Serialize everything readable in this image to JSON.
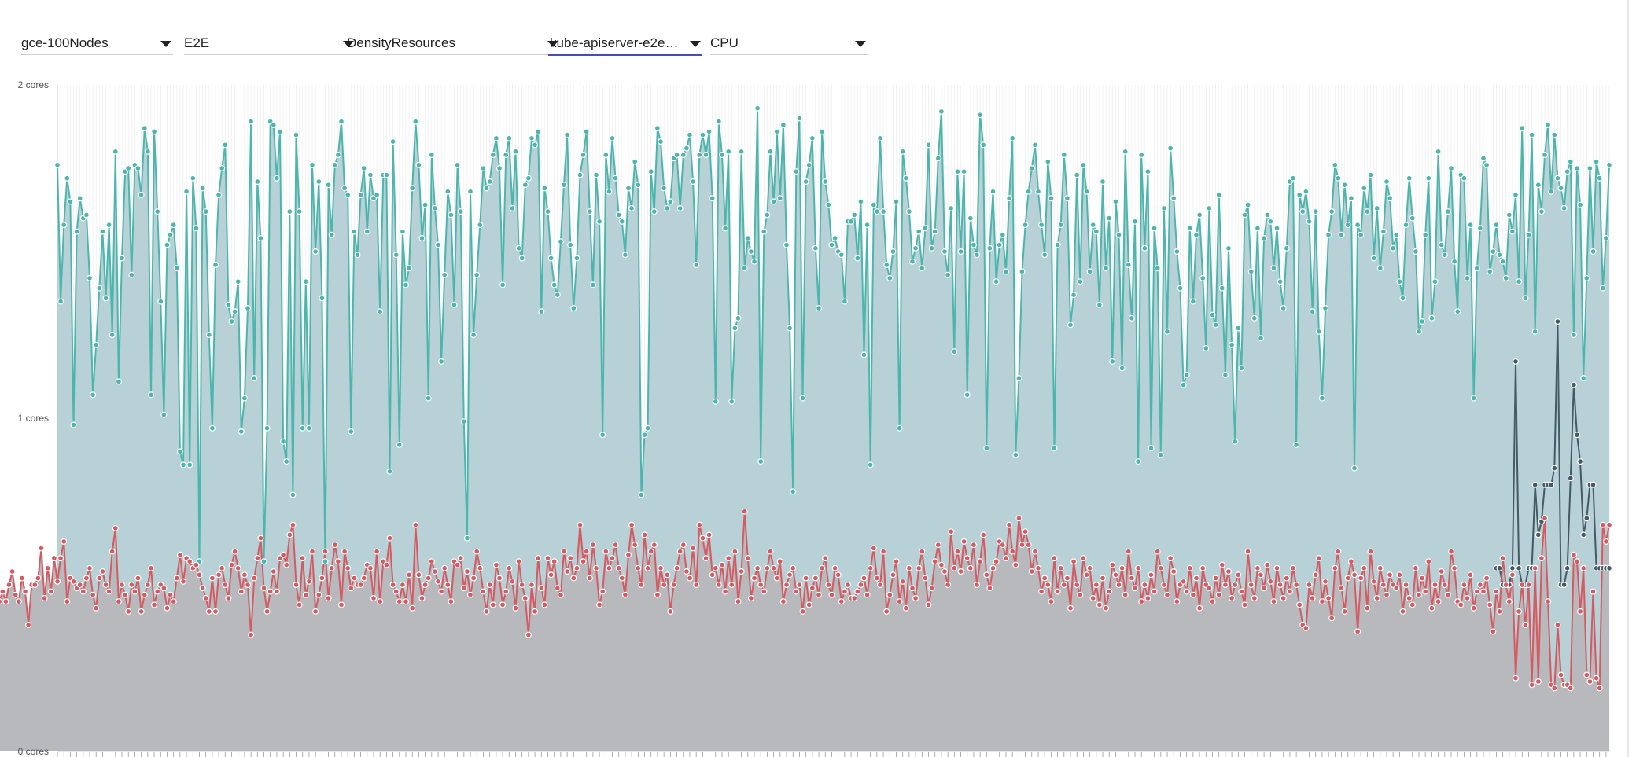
{
  "filters": [
    {
      "value": "gce-100Nodes"
    },
    {
      "value": "E2E"
    },
    {
      "value": "DensityResources"
    },
    {
      "value": "kube-apiserver-e2e-b..."
    },
    {
      "value": "CPU"
    }
  ],
  "colors": {
    "accent": "#3f51b5",
    "series_top": "#4db6ac",
    "series_top_fill": "#b4cfd4",
    "series_mid": "#455a64",
    "series_low": "#d45b62",
    "series_low_fill": "#b7b9bd"
  },
  "chart_data": {
    "type": "area",
    "ylabel": "",
    "xlabel": "",
    "ylim": [
      0,
      2
    ],
    "yticks": [
      {
        "value": 2,
        "label": "2 cores"
      },
      {
        "value": 1,
        "label": "1 cores"
      },
      {
        "value": 0,
        "label": "0 cores"
      }
    ],
    "grid": true,
    "series": [
      {
        "color": "#4db6ac",
        "values": [
          1.76,
          1.35,
          1.58,
          1.72,
          1.65,
          0.98,
          1.56,
          1.66,
          1.6,
          1.61,
          1.42,
          1.07,
          1.22,
          1.39,
          1.56,
          1.36,
          1.58,
          1.25,
          1.8,
          1.11,
          1.48,
          1.74,
          1.75,
          1.43,
          1.76,
          1.75,
          1.67,
          1.87,
          1.8,
          1.07,
          1.86,
          1.62,
          1.35,
          1.01,
          1.52,
          1.55,
          1.58,
          1.45,
          0.9,
          0.86,
          1.68,
          0.86,
          1.72,
          1.57,
          0.57,
          1.69,
          1.62,
          1.25,
          0.97,
          1.46,
          1.67,
          1.75,
          1.82,
          1.34,
          1.29,
          1.32,
          1.41,
          0.96,
          1.06,
          1.33,
          1.89,
          1.12,
          1.71,
          1.54,
          0.57,
          0.97,
          1.89,
          1.88,
          1.72,
          1.86,
          0.93,
          0.87,
          1.62,
          0.77,
          1.85,
          1.62,
          0.97,
          1.41,
          0.97,
          1.76,
          1.5,
          1.71,
          1.36,
          0.57,
          1.7,
          1.55,
          1.76,
          1.79,
          1.89,
          1.69,
          1.67,
          0.96,
          1.56,
          1.49,
          1.67,
          1.75,
          1.56,
          1.73,
          1.66,
          1.67,
          1.32,
          1.73,
          1.73,
          0.84,
          1.83,
          1.49,
          0.92,
          1.56,
          1.4,
          1.45,
          1.69,
          1.89,
          1.76,
          1.54,
          1.64,
          1.06,
          1.79,
          1.63,
          1.52,
          1.17,
          1.43,
          1.68,
          1.61,
          1.34,
          1.76,
          1.62,
          0.99,
          0.64,
          1.68,
          1.25,
          1.43,
          1.58,
          1.75,
          1.69,
          1.71,
          1.79,
          1.84,
          1.75,
          1.4,
          1.79,
          1.84,
          1.63,
          1.8,
          1.51,
          1.48,
          1.7,
          1.72,
          1.84,
          1.82,
          1.86,
          1.32,
          1.69,
          1.62,
          1.48,
          1.4,
          1.37,
          1.53,
          1.7,
          1.85,
          1.52,
          1.33,
          1.48,
          1.73,
          1.79,
          1.86,
          1.62,
          1.4,
          1.73,
          1.59,
          0.95,
          1.79,
          1.68,
          1.84,
          1.72,
          1.61,
          1.59,
          1.49,
          1.69,
          1.63,
          1.77,
          1.7,
          0.77,
          0.95,
          0.97,
          1.74,
          1.62,
          1.87,
          1.83,
          1.69,
          1.63,
          1.65,
          1.78,
          1.79,
          1.63,
          1.79,
          1.81,
          1.85,
          1.71,
          1.46,
          1.79,
          1.85,
          1.79,
          1.86,
          1.66,
          1.05,
          1.89,
          1.79,
          1.57,
          1.8,
          1.05,
          1.27,
          1.3,
          1.8,
          1.45,
          1.54,
          1.5,
          1.47,
          1.93,
          0.87,
          1.56,
          1.61,
          1.8,
          1.65,
          1.86,
          1.66,
          1.88,
          1.52,
          1.27,
          0.78,
          1.74,
          1.9,
          1.06,
          1.71,
          1.76,
          1.84,
          1.51,
          1.33,
          1.86,
          1.71,
          1.64,
          1.52,
          1.54,
          1.5,
          1.49,
          1.35,
          1.59,
          1.59,
          1.61,
          1.48,
          1.65,
          1.19,
          1.58,
          0.86,
          1.64,
          1.62,
          1.84,
          1.62,
          1.46,
          1.42,
          1.5,
          1.65,
          0.97,
          1.8,
          1.72,
          1.62,
          1.47,
          1.51,
          1.56,
          1.45,
          1.57,
          1.82,
          1.51,
          1.56,
          1.78,
          1.92,
          1.5,
          1.43,
          1.63,
          1.2,
          1.74,
          1.5,
          1.74,
          1.07,
          1.6,
          1.52,
          1.49,
          1.91,
          1.82,
          0.91,
          1.51,
          1.68,
          1.41,
          1.52,
          1.55,
          1.44,
          1.66,
          1.84,
          0.89,
          1.12,
          1.44,
          1.58,
          1.68,
          1.75,
          1.82,
          1.68,
          1.58,
          1.49,
          1.77,
          1.66,
          0.91,
          1.52,
          1.58,
          1.79,
          1.66,
          1.28,
          1.37,
          1.73,
          1.41,
          1.76,
          1.68,
          1.44,
          1.58,
          1.56,
          1.34,
          1.71,
          1.45,
          1.6,
          1.17,
          1.65,
          1.55,
          1.15,
          1.8,
          1.46,
          1.3,
          1.59,
          0.87,
          1.79,
          1.51,
          1.74,
          0.91,
          1.57,
          1.45,
          0.89,
          1.63,
          1.26,
          1.81,
          1.66,
          1.5,
          1.39,
          1.1,
          1.13,
          1.57,
          1.35,
          1.55,
          1.61,
          1.42,
          1.21,
          1.63,
          1.31,
          1.28,
          1.67,
          1.39,
          1.13,
          1.51,
          1.22,
          0.93,
          1.27,
          1.15,
          1.61,
          1.64,
          1.44,
          1.3,
          1.57,
          1.24,
          1.54,
          1.61,
          1.59,
          1.45,
          1.57,
          1.41,
          1.33,
          1.51,
          1.71,
          1.72,
          0.92,
          1.67,
          1.62,
          1.68,
          1.59,
          1.32,
          1.62,
          1.26,
          1.06,
          1.33,
          1.55,
          1.62,
          1.76,
          1.72,
          1.55,
          1.7,
          1.58,
          1.66,
          0.85,
          1.58,
          1.55,
          1.69,
          1.62,
          1.73,
          1.48,
          1.63,
          1.45,
          1.56,
          1.71,
          1.66,
          1.51,
          1.55,
          1.41,
          1.36,
          1.58,
          1.72,
          1.6,
          1.5,
          1.26,
          1.29,
          1.55,
          1.72,
          1.3,
          1.41,
          1.8,
          1.52,
          1.49,
          1.62,
          1.75,
          1.47,
          1.32,
          1.73,
          1.72,
          1.42,
          1.58,
          1.06,
          1.45,
          1.57,
          1.78,
          1.76,
          1.44,
          1.5,
          1.58,
          1.49,
          1.47,
          1.42,
          1.61,
          1.56,
          1.67,
          1.41,
          1.87,
          1.36,
          1.55,
          1.85,
          1.26,
          1.7,
          1.62,
          1.79,
          1.88,
          1.68,
          1.85,
          1.72,
          1.69,
          1.63,
          1.74,
          1.77,
          1.25,
          1.75,
          1.64,
          1.12,
          1.42,
          1.75,
          1.5,
          1.77,
          1.72,
          1.39,
          1.54,
          1.76
        ]
      },
      {
        "color": "#455a64",
        "values": [
          0.55,
          0.55,
          0.5,
          0.5,
          0.5,
          0.55,
          1.17,
          0.55,
          0.5,
          0.5,
          0.55,
          0.55,
          0.8,
          0.65,
          0.69,
          0.8,
          0.8,
          0.8,
          0.85,
          1.29,
          0.5,
          0.5,
          0.55,
          0.82,
          1.1,
          0.95,
          0.87,
          0.65,
          0.7,
          0.8,
          0.8,
          0.55,
          0.55,
          0.55,
          0.55,
          0.55
        ]
      },
      {
        "color": "#d45b62",
        "values": [
          0.47,
          0.52,
          0.55,
          0.5,
          0.55,
          0.5,
          0.5,
          0.46,
          0.48,
          0.42,
          0.45,
          0.43,
          0.53,
          0.5,
          0.45,
          0.48,
          0.45,
          0.5,
          0.54,
          0.47,
          0.45,
          0.52,
          0.48,
          0.38,
          0.5,
          0.5,
          0.52,
          0.61,
          0.46,
          0.55,
          0.48,
          0.58,
          0.51,
          0.58,
          0.63,
          0.45,
          0.52,
          0.51,
          0.49,
          0.5,
          0.48,
          0.52,
          0.55,
          0.47,
          0.43,
          0.52,
          0.54,
          0.5,
          0.48,
          0.6,
          0.67,
          0.45,
          0.5,
          0.47,
          0.42,
          0.5,
          0.48,
          0.52,
          0.42,
          0.47,
          0.5,
          0.55,
          0.44,
          0.48,
          0.5,
          0.49,
          0.43,
          0.47,
          0.45,
          0.52,
          0.59,
          0.51,
          0.58,
          0.57,
          0.55,
          0.56,
          0.53,
          0.49,
          0.46,
          0.42,
          0.52,
          0.42,
          0.53,
          0.55,
          0.5,
          0.46,
          0.56,
          0.6,
          0.55,
          0.48,
          0.53,
          0.5,
          0.35,
          0.52,
          0.58,
          0.64,
          0.49,
          0.42,
          0.48,
          0.54,
          0.48,
          0.58,
          0.59,
          0.56,
          0.65,
          0.68,
          0.5,
          0.44,
          0.58,
          0.47,
          0.51,
          0.6,
          0.42,
          0.47,
          0.52,
          0.6,
          0.46,
          0.55,
          0.62,
          0.57,
          0.44,
          0.6,
          0.55,
          0.49,
          0.52,
          0.5,
          0.5,
          0.52,
          0.56,
          0.55,
          0.46,
          0.6,
          0.45,
          0.57,
          0.56,
          0.64,
          0.5,
          0.48,
          0.45,
          0.5,
          0.45,
          0.53,
          0.43,
          0.68,
          0.53,
          0.46,
          0.5,
          0.52,
          0.57,
          0.54,
          0.51,
          0.48,
          0.55,
          0.5,
          0.45,
          0.57,
          0.56,
          0.58,
          0.49,
          0.54,
          0.47,
          0.52,
          0.6,
          0.55,
          0.48,
          0.42,
          0.5,
          0.44,
          0.56,
          0.52,
          0.44,
          0.48,
          0.55,
          0.51,
          0.43,
          0.57,
          0.5,
          0.46,
          0.35,
          0.5,
          0.42,
          0.58,
          0.49,
          0.44,
          0.58,
          0.53,
          0.57,
          0.49,
          0.47,
          0.6,
          0.54,
          0.58,
          0.52,
          0.55,
          0.68,
          0.57,
          0.6,
          0.52,
          0.62,
          0.55,
          0.44,
          0.48,
          0.6,
          0.55,
          0.58,
          0.62,
          0.55,
          0.52,
          0.47,
          0.59,
          0.68,
          0.62,
          0.55,
          0.5,
          0.65,
          0.55,
          0.6,
          0.62,
          0.47,
          0.55,
          0.5,
          0.53,
          0.42,
          0.5,
          0.55,
          0.6,
          0.62,
          0.54,
          0.52,
          0.61,
          0.5,
          0.68,
          0.64,
          0.58,
          0.65,
          0.53,
          0.55,
          0.5,
          0.56,
          0.48,
          0.58,
          0.5,
          0.6,
          0.45,
          0.54,
          0.72,
          0.58,
          0.46,
          0.52,
          0.55,
          0.5,
          0.48,
          0.55,
          0.6,
          0.55,
          0.52,
          0.57,
          0.45,
          0.5,
          0.53,
          0.55,
          0.48,
          0.5,
          0.42,
          0.52,
          0.44,
          0.49,
          0.52,
          0.47,
          0.55,
          0.58,
          0.5,
          0.47,
          0.55,
          0.53,
          0.45,
          0.48,
          0.5,
          0.46,
          0.46,
          0.48,
          0.5,
          0.52,
          0.47,
          0.55,
          0.61,
          0.52,
          0.5,
          0.6,
          0.42,
          0.47,
          0.53,
          0.57,
          0.45,
          0.51,
          0.43,
          0.55,
          0.49,
          0.46,
          0.55,
          0.6,
          0.52,
          0.44,
          0.49,
          0.57,
          0.62,
          0.56,
          0.54,
          0.5,
          0.66,
          0.55,
          0.6,
          0.54,
          0.63,
          0.58,
          0.55,
          0.62,
          0.5,
          0.57,
          0.65,
          0.53,
          0.49,
          0.55,
          0.57,
          0.63,
          0.62,
          0.58,
          0.68,
          0.6,
          0.56,
          0.7,
          0.62,
          0.66,
          0.62,
          0.54,
          0.6,
          0.55,
          0.48,
          0.52,
          0.5,
          0.45,
          0.58,
          0.48,
          0.55,
          0.5,
          0.52,
          0.43,
          0.57,
          0.5,
          0.47,
          0.58,
          0.53,
          0.55,
          0.46,
          0.5,
          0.44,
          0.52,
          0.43,
          0.48,
          0.56,
          0.53,
          0.5,
          0.55,
          0.47,
          0.6,
          0.52,
          0.49,
          0.55,
          0.45,
          0.5,
          0.46,
          0.53,
          0.48,
          0.6,
          0.55,
          0.5,
          0.47,
          0.58,
          0.54,
          0.45,
          0.5,
          0.51,
          0.48,
          0.55,
          0.47,
          0.52,
          0.43,
          0.55,
          0.5,
          0.49,
          0.45,
          0.52,
          0.47,
          0.56,
          0.5,
          0.54,
          0.46,
          0.5,
          0.53,
          0.48,
          0.44,
          0.6,
          0.5,
          0.46,
          0.55,
          0.53,
          0.49,
          0.56,
          0.51,
          0.45,
          0.55,
          0.5,
          0.46,
          0.52,
          0.48,
          0.55,
          0.5,
          0.44,
          0.38,
          0.37,
          0.5,
          0.46,
          0.53,
          0.58,
          0.45,
          0.51,
          0.46,
          0.4,
          0.55,
          0.6,
          0.49,
          0.42,
          0.52,
          0.57,
          0.53,
          0.36,
          0.52,
          0.55,
          0.43,
          0.6,
          0.51,
          0.46,
          0.55,
          0.5,
          0.47,
          0.53,
          0.5,
          0.49,
          0.53,
          0.42,
          0.5,
          0.46,
          0.44,
          0.55,
          0.47,
          0.52,
          0.48,
          0.57,
          0.43,
          0.5,
          0.45,
          0.54,
          0.5,
          0.47,
          0.6,
          0.55,
          0.45,
          0.44,
          0.5,
          0.46,
          0.53,
          0.43,
          0.48,
          0.5,
          0.48,
          0.52,
          0.44,
          0.36,
          0.48,
          0.42,
          0.58,
          0.5,
          0.45,
          0.53,
          0.22,
          0.42,
          0.5,
          0.38,
          0.5,
          0.2,
          0.55,
          0.21,
          0.58,
          0.7,
          0.45,
          0.2,
          0.19,
          0.38,
          0.23,
          0.2,
          0.2,
          0.19,
          0.59,
          0.57,
          0.42,
          0.55,
          0.23,
          0.21,
          0.48,
          0.22,
          0.19,
          0.68,
          0.63,
          0.68
        ]
      }
    ]
  }
}
